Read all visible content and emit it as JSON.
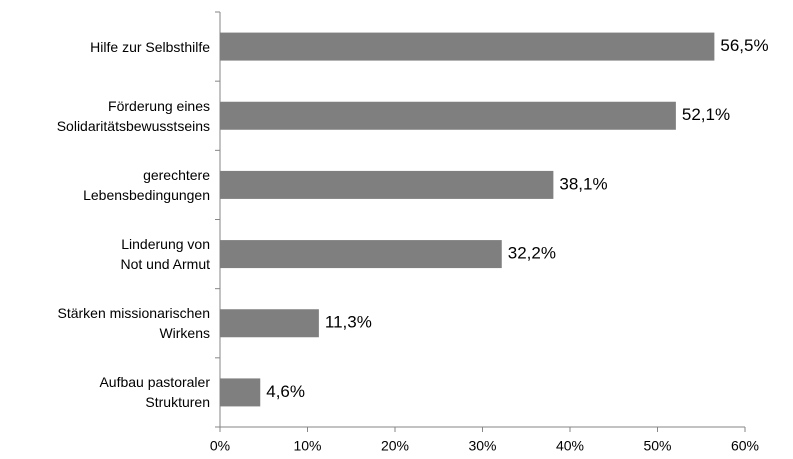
{
  "chart_data": {
    "type": "bar",
    "orientation": "horizontal",
    "categories": [
      "Hilfe zur Selbsthilfe",
      "Förderung eines\nSolidaritätsbewusstseins",
      "gerechtere\nLebensbedingungen",
      "Linderung von\nNot und Armut",
      "Stärken missionarischen\nWirkens",
      "Aufbau pastoraler\nStrukturen"
    ],
    "values": [
      56.5,
      52.1,
      38.1,
      32.2,
      11.3,
      4.6
    ],
    "value_labels": [
      "56,5%",
      "52,1%",
      "38,1%",
      "32,2%",
      "11,3%",
      "4,6%"
    ],
    "color": "#7f7f7f",
    "xlim": [
      0,
      60
    ],
    "xticks": [
      {
        "value": 0,
        "label": "0%"
      },
      {
        "value": 10,
        "label": "10%"
      },
      {
        "value": 20,
        "label": "20%"
      },
      {
        "value": 30,
        "label": "30%"
      },
      {
        "value": 40,
        "label": "40%"
      },
      {
        "value": 50,
        "label": "50%"
      },
      {
        "value": 60,
        "label": "60%"
      }
    ],
    "grid": false
  }
}
